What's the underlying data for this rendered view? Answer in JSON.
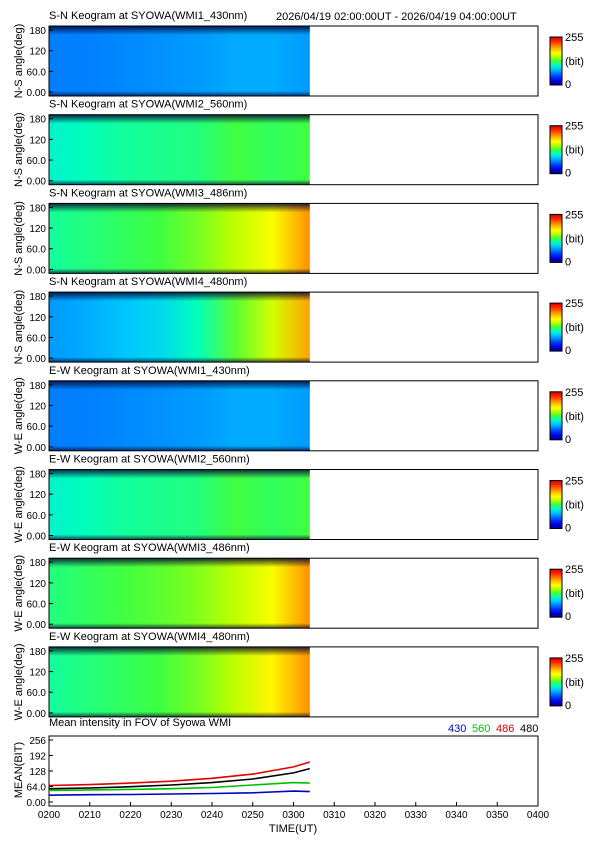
{
  "header": {
    "time_range": "2026/04/19 02:00:00UT - 2026/04/19 04:00:00UT"
  },
  "colors": {
    "colormap": [
      "#000090",
      "#0000d8",
      "#0030ff",
      "#0080ff",
      "#00c8ff",
      "#00ffc0",
      "#40ff40",
      "#b0ff00",
      "#ffff00",
      "#ffc000",
      "#ff7000",
      "#ff2000",
      "#d00000"
    ],
    "line_430": "#0000c0",
    "line_560": "#00c000",
    "line_486": "#e00000",
    "line_480": "#000000"
  },
  "keograms": [
    {
      "title": "S-N Keogram at SYOWA(WMI1_430nm)",
      "ylabel": "N-S angle(deg)",
      "yticks": [
        "180",
        "120",
        "60.0",
        "0.00"
      ],
      "cbar_max": "255",
      "cbar_unit": "(bit)",
      "cbar_min": "0",
      "data_end": "0304",
      "profile": [
        0.25,
        0.25,
        0.26,
        0.27,
        0.28,
        0.3,
        0.3,
        0.28
      ]
    },
    {
      "title": "S-N Keogram at SYOWA(WMI2_560nm)",
      "ylabel": "N-S angle(deg)",
      "yticks": [
        "180",
        "120",
        "60.0",
        "0.00"
      ],
      "cbar_max": "255",
      "cbar_unit": "(bit)",
      "cbar_min": "0",
      "data_end": "0304",
      "profile": [
        0.4,
        0.42,
        0.44,
        0.45,
        0.46,
        0.5,
        0.48,
        0.5
      ]
    },
    {
      "title": "S-N Keogram at SYOWA(WMI3_486nm)",
      "ylabel": "N-S angle(deg)",
      "yticks": [
        "180",
        "120",
        "60.0",
        "0.00"
      ],
      "cbar_max": "255",
      "cbar_unit": "(bit)",
      "cbar_min": "0",
      "data_end": "0304",
      "profile": [
        0.44,
        0.46,
        0.48,
        0.5,
        0.54,
        0.6,
        0.66,
        0.8
      ]
    },
    {
      "title": "S-N Keogram at SYOWA(WMI4_480nm)",
      "ylabel": "N-S angle(deg)",
      "yticks": [
        "180",
        "120",
        "60.0",
        "0.00"
      ],
      "cbar_max": "255",
      "cbar_unit": "(bit)",
      "cbar_min": "0",
      "data_end": "0304",
      "profile": [
        0.28,
        0.3,
        0.33,
        0.36,
        0.42,
        0.52,
        0.62,
        0.78
      ]
    },
    {
      "title": "E-W Keogram at SYOWA(WMI1_430nm)",
      "ylabel": "W-E angle(deg)",
      "yticks": [
        "180",
        "120",
        "60.0",
        "0.00"
      ],
      "cbar_max": "255",
      "cbar_unit": "(bit)",
      "cbar_min": "0",
      "data_end": "0304",
      "profile": [
        0.25,
        0.25,
        0.26,
        0.27,
        0.28,
        0.3,
        0.3,
        0.28
      ]
    },
    {
      "title": "E-W Keogram at SYOWA(WMI2_560nm)",
      "ylabel": "W-E angle(deg)",
      "yticks": [
        "180",
        "120",
        "60.0",
        "0.00"
      ],
      "cbar_max": "255",
      "cbar_unit": "(bit)",
      "cbar_min": "0",
      "data_end": "0304",
      "profile": [
        0.4,
        0.42,
        0.44,
        0.45,
        0.46,
        0.5,
        0.48,
        0.5
      ]
    },
    {
      "title": "E-W Keogram at SYOWA(WMI3_486nm)",
      "ylabel": "W-E angle(deg)",
      "yticks": [
        "180",
        "120",
        "60.0",
        "0.00"
      ],
      "cbar_max": "255",
      "cbar_unit": "(bit)",
      "cbar_min": "0",
      "data_end": "0304",
      "profile": [
        0.46,
        0.48,
        0.5,
        0.52,
        0.55,
        0.6,
        0.66,
        0.8
      ]
    },
    {
      "title": "E-W Keogram at SYOWA(WMI4_480nm)",
      "ylabel": "W-E angle(deg)",
      "yticks": [
        "180",
        "120",
        "60.0",
        "0.00"
      ],
      "cbar_max": "255",
      "cbar_unit": "(bit)",
      "cbar_min": "0",
      "data_end": "0304",
      "profile": [
        0.44,
        0.46,
        0.48,
        0.5,
        0.54,
        0.6,
        0.68,
        0.8
      ]
    }
  ],
  "chart_data": [
    {
      "type": "line",
      "title": "Mean intensity in FOV of Syowa WMI",
      "ylabel": "MEAN(BIT)",
      "xlabel": "TIME(UT)",
      "xlim_minutes_since_0200": [
        0,
        120
      ],
      "ylim": [
        0,
        256
      ],
      "xticks": [
        "0200",
        "0210",
        "0220",
        "0230",
        "0240",
        "0250",
        "0300",
        "0310",
        "0320",
        "0330",
        "0340",
        "0350",
        "0400"
      ],
      "yticks": [
        "256",
        "192",
        "128",
        "64.0",
        "0.00"
      ],
      "legend": [
        "430",
        "560",
        "486",
        "480"
      ],
      "x": [
        "0200",
        "0210",
        "0220",
        "0230",
        "0240",
        "0250",
        "0300",
        "0304"
      ],
      "series": [
        {
          "name": "430",
          "values": [
            28,
            30,
            31,
            33,
            35,
            38,
            45,
            43
          ]
        },
        {
          "name": "560",
          "values": [
            48,
            50,
            52,
            55,
            60,
            70,
            80,
            78
          ]
        },
        {
          "name": "486",
          "values": [
            68,
            72,
            78,
            86,
            98,
            115,
            145,
            165
          ]
        },
        {
          "name": "480",
          "values": [
            55,
            58,
            63,
            70,
            80,
            95,
            120,
            138
          ]
        }
      ]
    }
  ]
}
